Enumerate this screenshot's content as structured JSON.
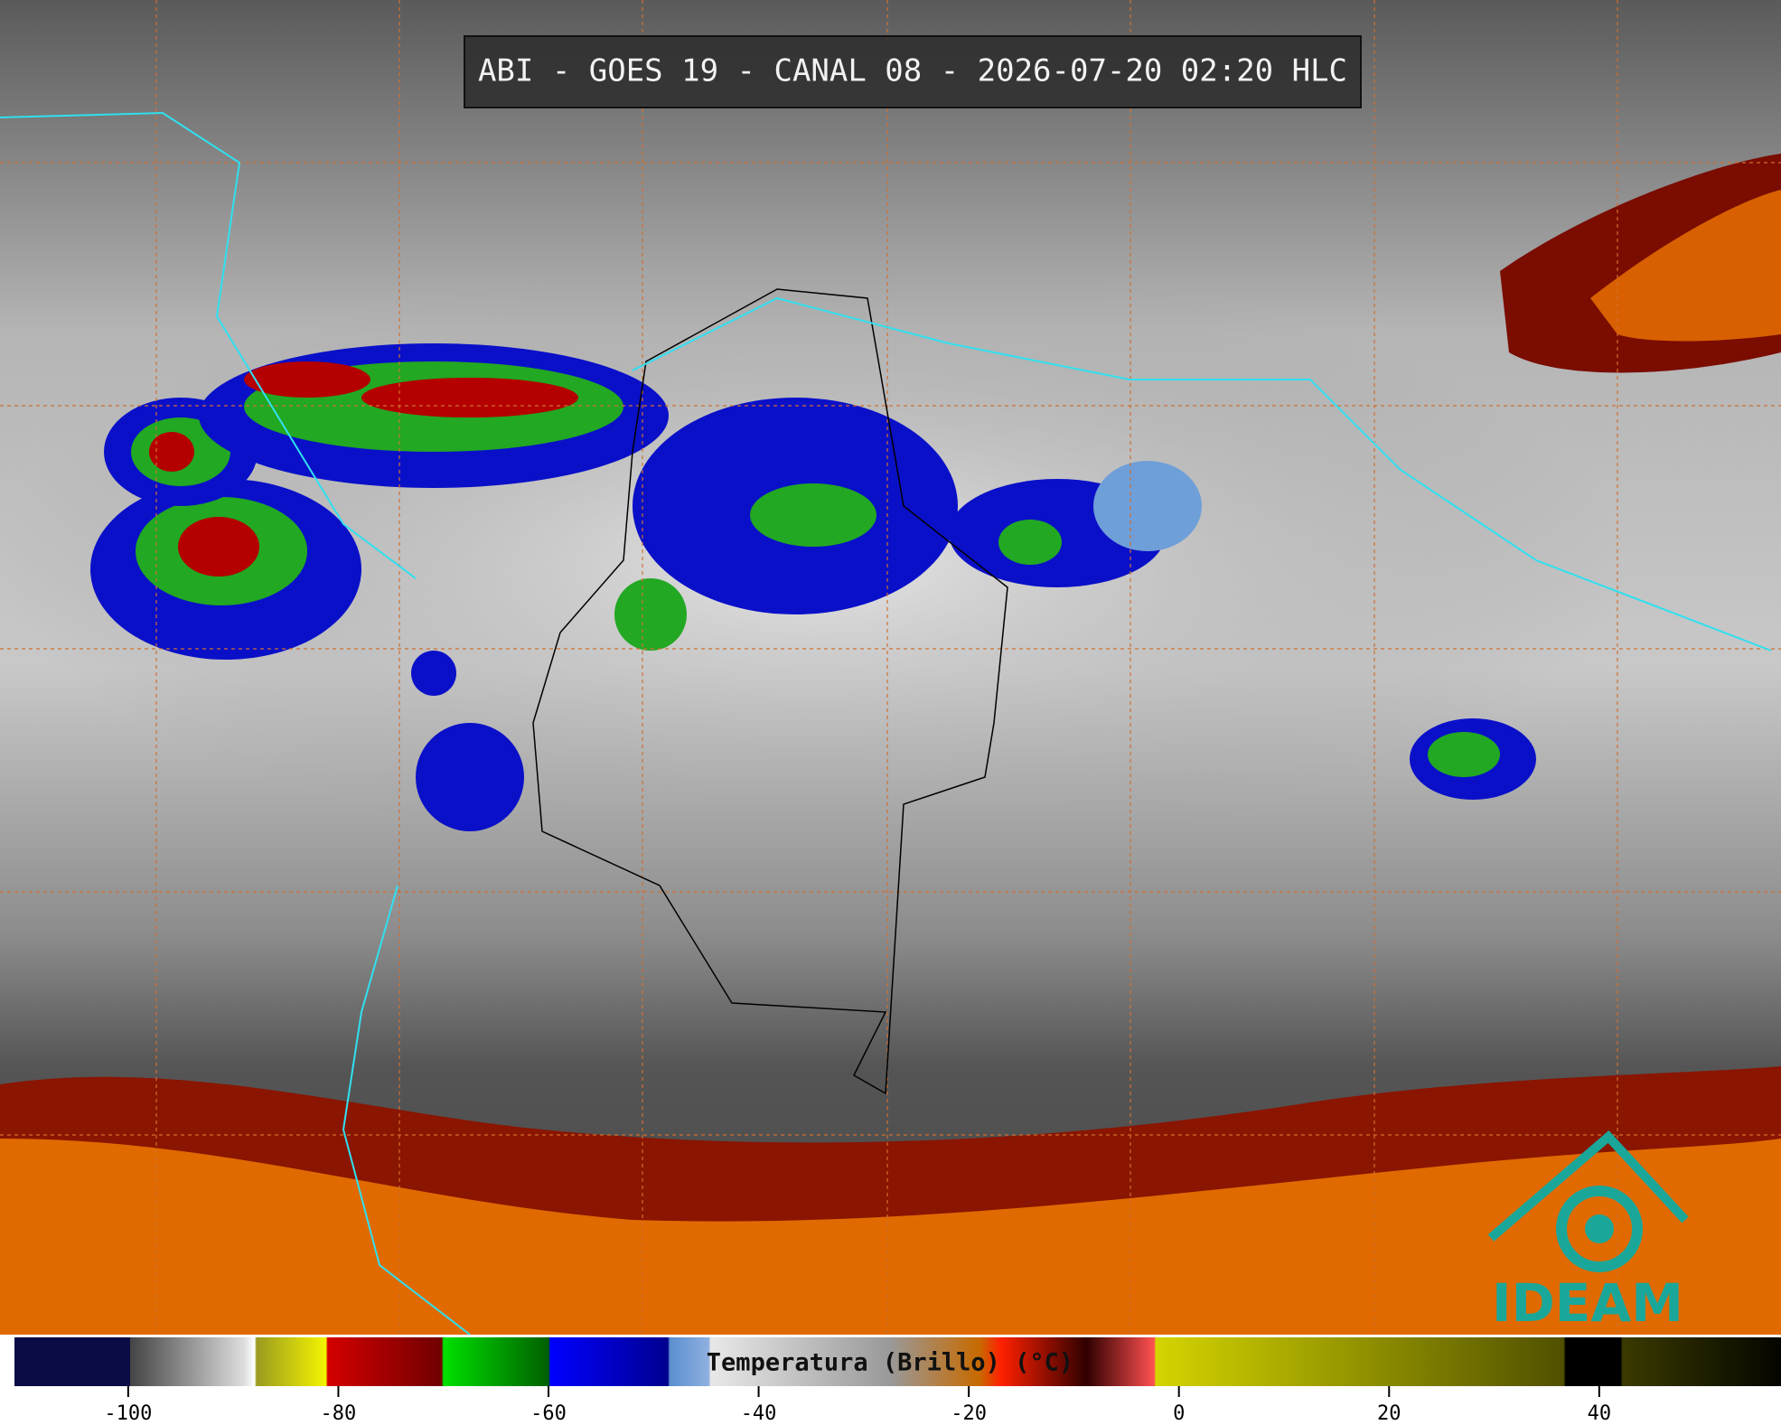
{
  "title": "ABI - GOES 19 - CANAL 08 - 2026-07-20 02:20 HLC",
  "colorbar": {
    "label": "Temperatura (Brillo) (°C)",
    "lim": [
      -112.2,
      57.3
    ],
    "ticks": [
      -100,
      -80,
      -60,
      -40,
      -20,
      0,
      20,
      40
    ]
  },
  "logo": "IDEAM"
}
